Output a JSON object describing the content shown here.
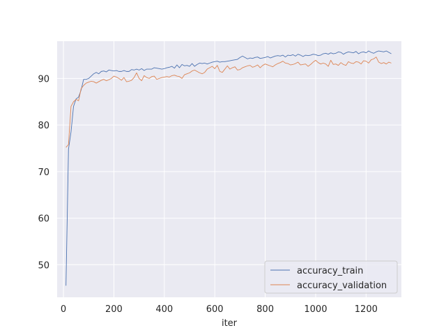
{
  "chart_data": {
    "type": "line",
    "title": "",
    "xlabel": "iter",
    "ylabel": "",
    "xlim": [
      -25,
      1340
    ],
    "ylim": [
      43,
      98
    ],
    "xticks": [
      0,
      200,
      400,
      600,
      800,
      1000,
      1200
    ],
    "yticks": [
      50,
      60,
      70,
      80,
      90
    ],
    "grid": true,
    "legend_position": "bottom-right",
    "series": [
      {
        "name": "accuracy_train",
        "color": "#4c72b0",
        "x": [
          10,
          20,
          30,
          40,
          50,
          60,
          70,
          80,
          90,
          100,
          110,
          120,
          130,
          140,
          150,
          160,
          170,
          180,
          190,
          200,
          210,
          220,
          230,
          240,
          250,
          260,
          270,
          280,
          290,
          300,
          310,
          320,
          330,
          340,
          350,
          360,
          370,
          380,
          390,
          400,
          410,
          420,
          430,
          440,
          450,
          460,
          470,
          480,
          490,
          500,
          510,
          520,
          530,
          540,
          550,
          560,
          570,
          580,
          590,
          600,
          610,
          620,
          630,
          640,
          650,
          660,
          670,
          680,
          690,
          700,
          710,
          720,
          730,
          740,
          750,
          760,
          770,
          780,
          790,
          800,
          810,
          820,
          830,
          840,
          850,
          860,
          870,
          880,
          890,
          900,
          910,
          920,
          930,
          940,
          950,
          960,
          970,
          980,
          990,
          1000,
          1010,
          1020,
          1030,
          1040,
          1050,
          1060,
          1070,
          1080,
          1090,
          1100,
          1110,
          1120,
          1130,
          1140,
          1150,
          1160,
          1170,
          1180,
          1190,
          1200,
          1210,
          1220,
          1230,
          1240,
          1250,
          1260,
          1270,
          1280,
          1290,
          1300
        ],
        "y": [
          45.5,
          74.8,
          78.5,
          84.0,
          85.6,
          86.0,
          87.5,
          89.8,
          89.8,
          90.0,
          90.5,
          91.0,
          91.3,
          91.0,
          91.5,
          91.6,
          91.4,
          91.8,
          91.7,
          91.6,
          91.7,
          91.5,
          91.5,
          91.7,
          91.5,
          91.5,
          91.9,
          91.8,
          92.0,
          91.8,
          92.1,
          91.7,
          92.0,
          92.0,
          92.0,
          92.3,
          92.2,
          92.1,
          92.0,
          92.1,
          92.3,
          92.4,
          92.6,
          92.2,
          92.9,
          92.3,
          93.0,
          92.7,
          92.8,
          92.6,
          93.2,
          92.6,
          93.0,
          93.3,
          93.2,
          93.3,
          93.1,
          93.3,
          93.5,
          93.6,
          93.7,
          93.5,
          93.6,
          93.6,
          93.7,
          93.8,
          93.9,
          94.0,
          94.1,
          94.5,
          94.8,
          94.5,
          94.2,
          94.4,
          94.3,
          94.5,
          94.6,
          94.3,
          94.4,
          94.5,
          94.7,
          94.4,
          94.6,
          94.8,
          94.9,
          94.8,
          95.0,
          94.6,
          95.0,
          94.9,
          95.1,
          94.8,
          95.2,
          95.0,
          94.7,
          95.0,
          94.9,
          95.0,
          95.2,
          95.1,
          94.9,
          95.0,
          95.3,
          95.4,
          95.2,
          95.5,
          95.3,
          95.4,
          95.7,
          95.6,
          95.2,
          95.5,
          95.7,
          95.6,
          95.5,
          95.8,
          95.3,
          95.6,
          95.7,
          95.5,
          95.9,
          95.6,
          95.4,
          95.7,
          95.9,
          95.8,
          95.7,
          95.9,
          95.6,
          95.3
        ]
      },
      {
        "name": "accuracy_validation",
        "color": "#dd8452",
        "x": [
          10,
          20,
          30,
          40,
          50,
          60,
          70,
          80,
          90,
          100,
          110,
          120,
          130,
          140,
          150,
          160,
          170,
          180,
          190,
          200,
          210,
          220,
          230,
          240,
          250,
          260,
          270,
          280,
          290,
          300,
          310,
          320,
          330,
          340,
          350,
          360,
          370,
          380,
          390,
          400,
          410,
          420,
          430,
          440,
          450,
          460,
          470,
          480,
          490,
          500,
          510,
          520,
          530,
          540,
          550,
          560,
          570,
          580,
          590,
          600,
          610,
          620,
          630,
          640,
          650,
          660,
          670,
          680,
          690,
          700,
          710,
          720,
          730,
          740,
          750,
          760,
          770,
          780,
          790,
          800,
          810,
          820,
          830,
          840,
          850,
          860,
          870,
          880,
          890,
          900,
          910,
          920,
          930,
          940,
          950,
          960,
          970,
          980,
          990,
          1000,
          1010,
          1020,
          1030,
          1040,
          1050,
          1060,
          1070,
          1080,
          1090,
          1100,
          1110,
          1120,
          1130,
          1140,
          1150,
          1160,
          1170,
          1180,
          1190,
          1200,
          1210,
          1220,
          1230,
          1240,
          1250,
          1260,
          1270,
          1280,
          1290,
          1300
        ],
        "y": [
          75.2,
          75.8,
          84.0,
          85.0,
          85.5,
          85.2,
          87.8,
          88.5,
          89.0,
          89.2,
          89.4,
          89.3,
          89.0,
          89.3,
          89.6,
          89.8,
          89.5,
          89.7,
          90.0,
          90.5,
          90.3,
          90.0,
          89.6,
          90.2,
          89.3,
          89.4,
          89.6,
          90.2,
          91.2,
          90.0,
          89.5,
          90.6,
          90.2,
          90.0,
          90.4,
          90.5,
          89.8,
          90.0,
          90.2,
          90.3,
          90.4,
          90.3,
          90.6,
          90.7,
          90.5,
          90.4,
          90.0,
          90.8,
          91.0,
          91.2,
          91.6,
          91.8,
          91.5,
          91.2,
          91.0,
          91.3,
          92.0,
          92.3,
          92.6,
          92.1,
          92.8,
          91.5,
          91.3,
          92.0,
          92.7,
          92.0,
          92.3,
          92.5,
          91.8,
          91.9,
          92.3,
          92.5,
          92.7,
          92.8,
          92.4,
          92.6,
          92.9,
          92.3,
          92.8,
          93.1,
          92.9,
          92.7,
          92.5,
          92.9,
          93.2,
          93.4,
          93.7,
          93.3,
          93.2,
          92.9,
          93.0,
          93.2,
          93.5,
          92.9,
          93.0,
          93.1,
          92.6,
          93.0,
          93.5,
          93.9,
          93.4,
          93.1,
          93.3,
          93.1,
          92.6,
          93.9,
          93.0,
          93.1,
          92.8,
          93.4,
          93.0,
          92.8,
          93.6,
          93.3,
          93.2,
          93.6,
          93.5,
          93.1,
          93.8,
          93.7,
          93.3,
          94.0,
          94.2,
          94.6,
          93.5,
          93.2,
          93.4,
          93.1,
          93.5,
          93.3
        ]
      }
    ]
  }
}
